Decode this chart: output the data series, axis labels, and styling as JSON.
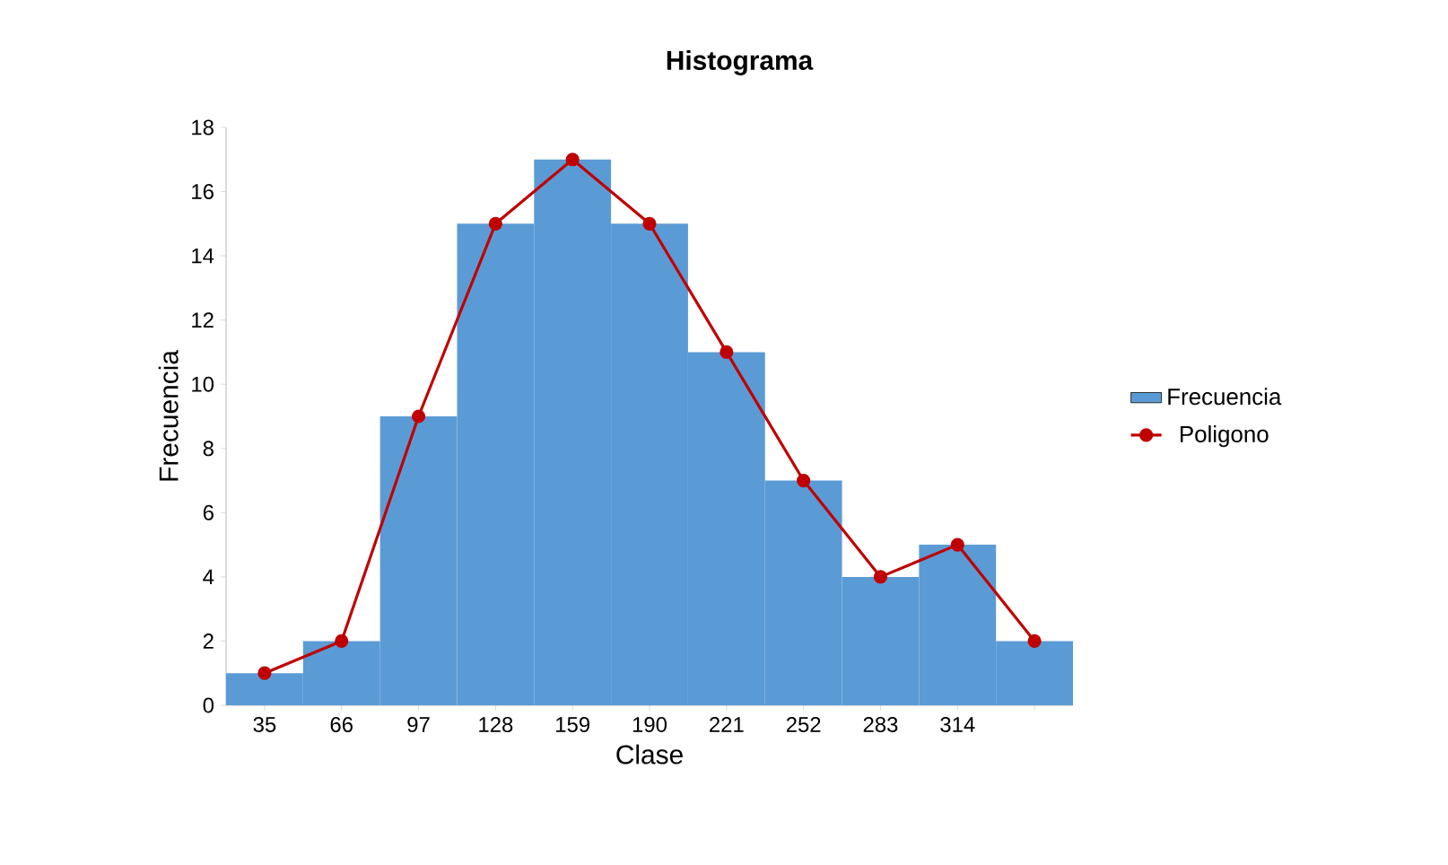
{
  "chart_data": {
    "type": "bar",
    "title": "Histograma",
    "xlabel": "Clase",
    "ylabel": "Frecuencia",
    "categories": [
      "35",
      "66",
      "97",
      "128",
      "159",
      "190",
      "221",
      "252",
      "283",
      "314",
      null
    ],
    "series": [
      {
        "name": "Frecuencia",
        "color": "#5b9bd5",
        "values": [
          1,
          2,
          9,
          15,
          17,
          15,
          11,
          7,
          4,
          5,
          2
        ]
      },
      {
        "name": "Poligono",
        "type": "line",
        "color": "#c00000",
        "marker": "circle",
        "line_style": "solid",
        "values": [
          1,
          2,
          9,
          15,
          17,
          15,
          11,
          7,
          4,
          5,
          2
        ]
      }
    ],
    "ylim": [
      0,
      18
    ],
    "yticks": [
      0,
      2,
      4,
      6,
      8,
      10,
      12,
      14,
      16,
      18
    ],
    "legend": "right"
  }
}
